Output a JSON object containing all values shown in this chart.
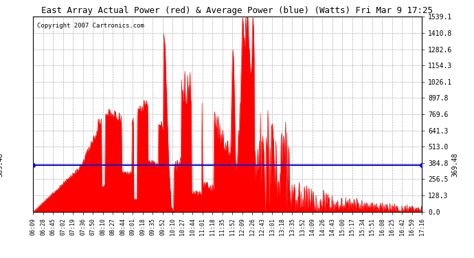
{
  "title": "East Array Actual Power (red) & Average Power (blue) (Watts) Fri Mar 9 17:25",
  "copyright": "Copyright 2007 Cartronics.com",
  "avg_power": 369.48,
  "y_max": 1539.1,
  "y_ticks": [
    0.0,
    128.3,
    256.5,
    384.8,
    513.0,
    641.3,
    769.6,
    897.8,
    1026.1,
    1154.3,
    1282.6,
    1410.8,
    1539.1
  ],
  "x_labels": [
    "06:09",
    "06:28",
    "06:45",
    "07:02",
    "07:19",
    "07:36",
    "07:50",
    "08:10",
    "08:27",
    "08:44",
    "09:01",
    "09:18",
    "09:35",
    "09:52",
    "10:10",
    "10:27",
    "10:44",
    "11:01",
    "11:18",
    "11:35",
    "11:52",
    "12:09",
    "12:26",
    "12:43",
    "13:01",
    "13:18",
    "13:35",
    "13:52",
    "14:09",
    "14:26",
    "14:43",
    "15:00",
    "15:17",
    "15:34",
    "15:51",
    "16:08",
    "16:25",
    "16:42",
    "16:59",
    "17:16"
  ],
  "bg_color": "#ffffff",
  "plot_bg_color": "#ffffff",
  "grid_color": "#999999",
  "bar_color": "#ff0000",
  "line_color": "#0000ff",
  "title_color": "#000000",
  "copyright_color": "#000000"
}
